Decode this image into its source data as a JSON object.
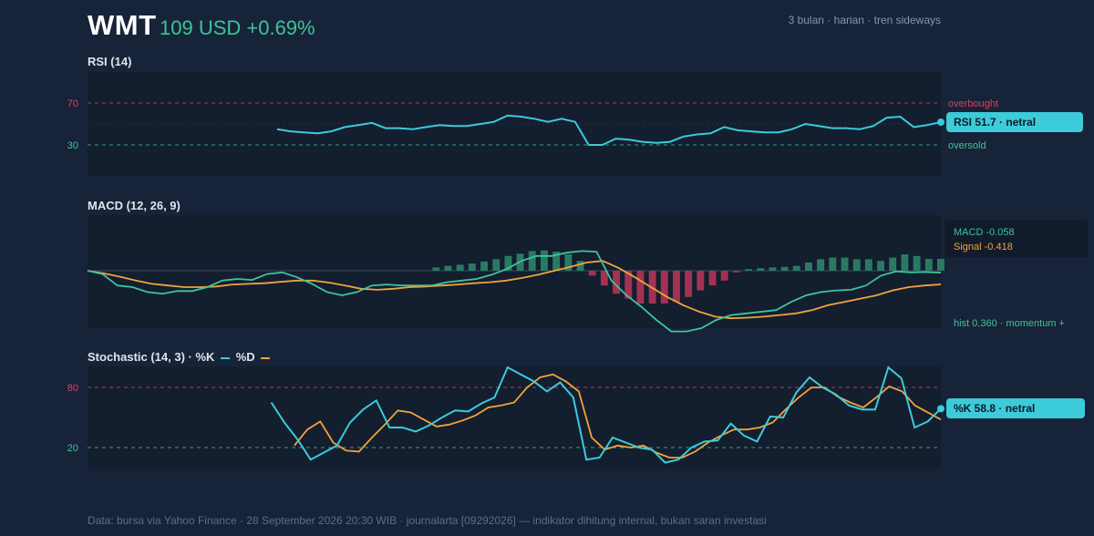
{
  "header": {
    "ticker": "WMT",
    "price_change": "109 USD +0.69%",
    "meta": "3 bulan · harian · tren sideways"
  },
  "footer": "Data: bursa via Yahoo Finance · 28 September 2026 20:30 WIB · journalarta [09292026] — indikator dihitung internal, bukan saran investasi",
  "colors": {
    "background": "#172338",
    "panel": "#131e2f",
    "rsi": "#3ccbd9",
    "macd": "#3ec49a",
    "signal": "#f0a33c",
    "hist_pos": "#2a7a63",
    "hist_neg": "#a33252",
    "overbought": "#d9425e",
    "oversold": "#3ec49a"
  },
  "chart_data": [
    {
      "type": "line",
      "title": "RSI (14)",
      "ylim": [
        0,
        100
      ],
      "ticks": [
        "70",
        "30"
      ],
      "reference_lines": [
        {
          "value": 70,
          "label": "overbought"
        },
        {
          "value": 50
        },
        {
          "value": 30,
          "label": "oversold"
        }
      ],
      "series": [
        {
          "values": [
            null,
            null,
            null,
            null,
            null,
            null,
            null,
            null,
            null,
            null,
            null,
            null,
            null,
            null,
            45,
            43,
            42,
            41,
            43,
            47,
            49,
            51,
            46,
            46,
            45,
            47,
            49,
            48,
            48,
            50,
            52,
            58,
            57,
            55,
            52,
            55,
            52,
            30,
            30,
            36,
            35,
            33,
            32,
            33,
            38,
            40,
            41,
            47,
            44,
            43,
            42,
            42,
            45,
            50,
            48,
            46,
            46,
            45,
            48,
            56,
            57,
            47,
            49,
            51.7
          ]
        }
      ],
      "end_label": "RSI 51.7 · netral",
      "grid": false
    },
    {
      "type": "line",
      "title": "MACD (12, 26, 9)",
      "ylim": [
        -2.2,
        1.6
      ],
      "legend": {
        "macd": "MACD -0.058",
        "signal": "Signal -0.418"
      },
      "note": "hist 0.360 · momentum +",
      "series": [
        {
          "name": "MACD",
          "values": [
            0,
            -0.1,
            -0.45,
            -0.5,
            -0.65,
            -0.7,
            -0.62,
            -0.62,
            -0.5,
            -0.3,
            -0.25,
            -0.28,
            -0.1,
            -0.05,
            -0.2,
            -0.4,
            -0.65,
            -0.75,
            -0.65,
            -0.45,
            -0.42,
            -0.45,
            -0.45,
            -0.45,
            -0.35,
            -0.3,
            -0.25,
            -0.12,
            0.05,
            0.3,
            0.45,
            0.45,
            0.55,
            0.6,
            0.58,
            -0.3,
            -0.75,
            -1.1,
            -1.5,
            -1.85,
            -1.85,
            -1.75,
            -1.5,
            -1.35,
            -1.3,
            -1.25,
            -1.2,
            -0.95,
            -0.75,
            -0.65,
            -0.6,
            -0.58,
            -0.45,
            -0.15,
            -0.02,
            -0.05,
            -0.04,
            -0.058
          ]
        },
        {
          "name": "Signal",
          "values": [
            0,
            -0.08,
            -0.18,
            -0.3,
            -0.4,
            -0.45,
            -0.5,
            -0.5,
            -0.48,
            -0.42,
            -0.4,
            -0.38,
            -0.34,
            -0.3,
            -0.3,
            -0.36,
            -0.45,
            -0.55,
            -0.58,
            -0.55,
            -0.5,
            -0.48,
            -0.45,
            -0.42,
            -0.38,
            -0.35,
            -0.3,
            -0.22,
            -0.12,
            0,
            0.12,
            0.25,
            0.3,
            0.08,
            -0.2,
            -0.5,
            -0.8,
            -1.05,
            -1.25,
            -1.4,
            -1.45,
            -1.43,
            -1.4,
            -1.35,
            -1.3,
            -1.2,
            -1.05,
            -0.95,
            -0.85,
            -0.75,
            -0.6,
            -0.5,
            -0.45,
            -0.418
          ]
        },
        {
          "name": "Histogram",
          "values": [
            null,
            null,
            null,
            null,
            null,
            null,
            null,
            null,
            null,
            null,
            null,
            null,
            null,
            null,
            null,
            null,
            null,
            null,
            null,
            null,
            null,
            null,
            null,
            null,
            null,
            null,
            null,
            null,
            null,
            0.1,
            0.15,
            0.18,
            0.22,
            0.28,
            0.35,
            0.45,
            0.52,
            0.6,
            0.62,
            0.58,
            0.5,
            0.3,
            -0.15,
            -0.45,
            -0.7,
            -0.85,
            -1.0,
            -1.0,
            -1.0,
            -0.95,
            -0.8,
            -0.6,
            -0.45,
            -0.3,
            -0.05,
            0.05,
            0.08,
            0.1,
            0.12,
            0.15,
            0.25,
            0.35,
            0.4,
            0.4,
            0.35,
            0.35,
            0.3,
            0.4,
            0.5,
            0.45,
            0.36,
            0.36
          ]
        }
      ],
      "grid": false
    },
    {
      "type": "line",
      "title": "Stochastic (14, 3) · %K",
      "title_d": "%D",
      "ylim": [
        0,
        100
      ],
      "ticks": [
        "80",
        "20"
      ],
      "reference_lines": [
        {
          "value": 80
        },
        {
          "value": 20
        }
      ],
      "series": [
        {
          "name": "%K",
          "values": [
            null,
            null,
            null,
            null,
            null,
            null,
            null,
            null,
            null,
            null,
            null,
            null,
            null,
            null,
            65,
            45,
            28,
            8,
            15,
            22,
            45,
            58,
            67,
            40,
            40,
            36,
            42,
            50,
            57,
            56,
            64,
            70,
            100,
            93,
            86,
            76,
            85,
            70,
            8,
            10,
            30,
            25,
            20,
            18,
            5,
            8,
            20,
            26,
            27,
            44,
            32,
            26,
            51,
            50,
            75,
            90,
            80,
            73,
            62,
            58,
            58,
            100,
            89,
            40,
            46,
            58.8
          ]
        },
        {
          "name": "%D",
          "values": [
            null,
            null,
            null,
            null,
            null,
            null,
            null,
            null,
            null,
            null,
            null,
            null,
            null,
            null,
            null,
            null,
            22,
            38,
            46,
            25,
            17,
            16,
            30,
            43,
            57,
            55,
            48,
            41,
            43,
            47,
            52,
            60,
            62,
            65,
            80,
            90,
            93,
            86,
            76,
            30,
            18,
            22,
            20,
            22,
            15,
            10,
            10,
            16,
            25,
            32,
            38,
            38,
            40,
            45,
            58,
            70,
            80,
            80,
            71,
            65,
            60,
            70,
            81,
            76,
            62,
            55,
            48
          ]
        }
      ],
      "end_label": "%K 58.8 · netral",
      "grid": false
    }
  ]
}
